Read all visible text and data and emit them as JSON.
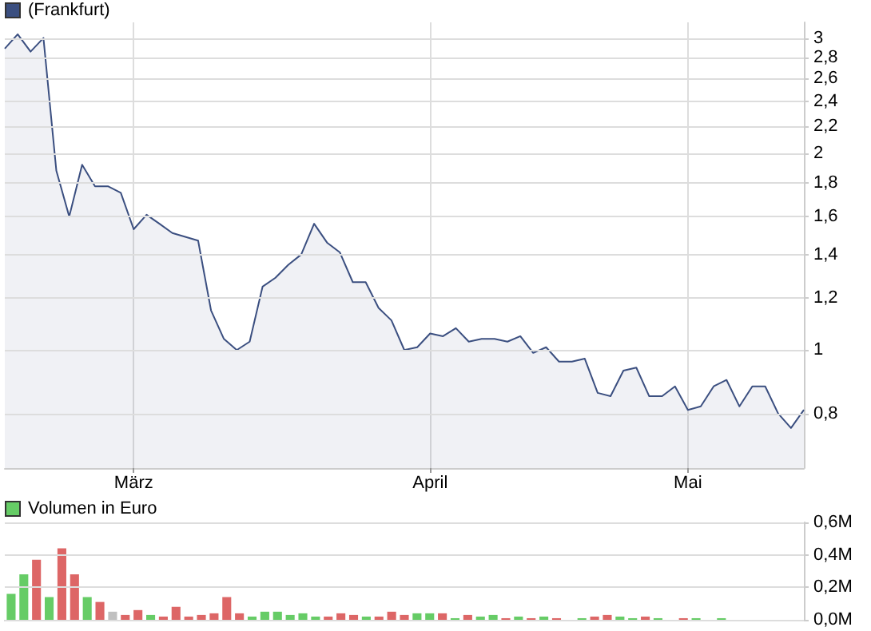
{
  "chart_data": [
    {
      "type": "area",
      "categories": [
        null,
        null,
        null,
        null,
        null,
        null,
        null,
        null,
        null,
        null,
        "März",
        null,
        null,
        null,
        null,
        null,
        null,
        null,
        null,
        null,
        null,
        null,
        null,
        null,
        null,
        null,
        null,
        null,
        null,
        null,
        null,
        null,
        null,
        "April",
        null,
        null,
        null,
        null,
        null,
        null,
        null,
        null,
        null,
        null,
        null,
        null,
        null,
        null,
        null,
        null,
        null,
        null,
        null,
        "Mai",
        null,
        null,
        null,
        null,
        null,
        null,
        null,
        null,
        null
      ],
      "series": [
        {
          "name": "(Frankfurt)",
          "color": "#3b4f80",
          "values": [
            2.89,
            3.04,
            2.86,
            3.0,
            1.88,
            1.6,
            1.92,
            1.78,
            1.78,
            1.74,
            1.53,
            1.61,
            1.56,
            1.51,
            1.49,
            1.47,
            1.15,
            1.04,
            1.0,
            1.03,
            1.25,
            1.29,
            1.35,
            1.4,
            1.56,
            1.46,
            1.41,
            1.27,
            1.27,
            1.16,
            1.11,
            1.0,
            1.01,
            1.06,
            1.05,
            1.08,
            1.03,
            1.04,
            1.04,
            1.03,
            1.05,
            0.99,
            1.01,
            0.96,
            0.96,
            0.97,
            0.86,
            0.85,
            0.93,
            0.94,
            0.85,
            0.85,
            0.88,
            0.81,
            0.82,
            0.88,
            0.9,
            0.82,
            0.88,
            0.88,
            0.8,
            0.76,
            0.81
          ]
        }
      ],
      "log": "y",
      "ylim": [
        0.66,
        3.17
      ],
      "yticks": [
        {
          "value": 0.8,
          "label": "0,8"
        },
        1,
        {
          "value": 1.2,
          "label": "1,2"
        },
        {
          "value": 1.4,
          "label": "1,4"
        },
        {
          "value": 1.6,
          "label": "1,6"
        },
        {
          "value": 1.8,
          "label": "1,8"
        },
        2,
        {
          "value": 2.2,
          "label": "2,2"
        },
        {
          "value": 2.4,
          "label": "2,4"
        },
        {
          "value": 2.6,
          "label": "2,6"
        },
        {
          "value": 2.8,
          "label": "2,8"
        },
        3
      ],
      "grid": true,
      "legend": "top left",
      "marker": "none",
      "line_style": "solid"
    },
    {
      "type": "bar",
      "categories": [
        null,
        null,
        null,
        null,
        null,
        null,
        null,
        null,
        null,
        null,
        null,
        null,
        null,
        null,
        null,
        null,
        null,
        null,
        null,
        null,
        null,
        null,
        null,
        null,
        null,
        null,
        null,
        null,
        null,
        null,
        null,
        null,
        null,
        null,
        null,
        null,
        null,
        null,
        null,
        null,
        null,
        null,
        null,
        null,
        null,
        null,
        null,
        null,
        null,
        null,
        null,
        null,
        null,
        null,
        null,
        null,
        null,
        null,
        null,
        null,
        null,
        null,
        null
      ],
      "series": [
        {
          "name": "Volumen in Euro",
          "color": "#66cc66",
          "values": [
            0.16,
            0.28,
            0.37,
            0.14,
            0.44,
            0.28,
            0.14,
            0.11,
            0.05,
            0.03,
            0.06,
            0.03,
            0.02,
            0.08,
            0.02,
            0.03,
            0.04,
            0.14,
            0.04,
            0.02,
            0.05,
            0.05,
            0.03,
            0.04,
            0.02,
            0.02,
            0.04,
            0.03,
            0.02,
            0.02,
            0.05,
            0.03,
            0.04,
            0.04,
            0.04,
            0.01,
            0.03,
            0.02,
            0.03,
            0.01,
            0.02,
            0.01,
            0.02,
            0.01,
            null,
            0.01,
            0.02,
            0.03,
            0.02,
            0.01,
            0.02,
            0.01,
            null,
            0.01,
            0.01,
            null,
            0.01,
            null,
            null,
            null,
            null,
            null,
            null
          ],
          "colors": [
            "#66cc66",
            "#66cc66",
            "#dd6666",
            "#66cc66",
            "#dd6666",
            "#dd6666",
            "#66cc66",
            "#dd6666",
            "#c0c0c0",
            "#dd6666",
            "#dd6666",
            "#66cc66",
            "#dd6666",
            "#dd6666",
            "#dd6666",
            "#dd6666",
            "#dd6666",
            "#dd6666",
            "#dd6666",
            "#66cc66",
            "#66cc66",
            "#66cc66",
            "#66cc66",
            "#66cc66",
            "#66cc66",
            "#dd6666",
            "#dd6666",
            "#dd6666",
            "#66cc66",
            "#dd6666",
            "#dd6666",
            "#dd6666",
            "#66cc66",
            "#66cc66",
            "#dd6666",
            "#66cc66",
            "#dd6666",
            "#66cc66",
            "#66cc66",
            "#dd6666",
            "#66cc66",
            "#dd6666",
            "#66cc66",
            "#dd6666",
            "#66cc66",
            "#66cc66",
            "#dd6666",
            "#dd6666",
            "#66cc66",
            "#66cc66",
            "#dd6666",
            "#66cc66",
            "#66cc66",
            "#dd6666",
            "#66cc66",
            "#66cc66",
            "#66cc66",
            "#66cc66",
            "#66cc66",
            "#66cc66",
            "#66cc66",
            "#66cc66",
            "#66cc66"
          ]
        }
      ],
      "ylim": [
        0,
        0.6
      ],
      "yticks": [
        {
          "value": 0,
          "label": "0,0M"
        },
        {
          "value": 0.2,
          "label": "0,2M"
        },
        {
          "value": 0.4,
          "label": "0,4M"
        },
        {
          "value": 0.6,
          "label": "0,6M"
        }
      ],
      "grid": "y",
      "legend": "top left",
      "tick_labels": "y"
    }
  ]
}
